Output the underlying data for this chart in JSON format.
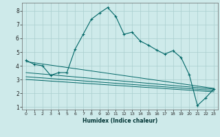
{
  "xlabel": "Humidex (Indice chaleur)",
  "bg_color": "#ceeaea",
  "grid_color": "#aacece",
  "line_color": "#006666",
  "xlim": [
    -0.5,
    23.5
  ],
  "ylim": [
    0.8,
    8.6
  ],
  "x_ticks": [
    0,
    1,
    2,
    3,
    4,
    5,
    6,
    7,
    8,
    9,
    10,
    11,
    12,
    13,
    14,
    15,
    16,
    17,
    18,
    19,
    20,
    21,
    22,
    23
  ],
  "y_ticks": [
    1,
    2,
    3,
    4,
    5,
    6,
    7,
    8
  ],
  "main_x": [
    0,
    1,
    2,
    3,
    4,
    5,
    6,
    7,
    8,
    9,
    10,
    11,
    12,
    13,
    14,
    15,
    16,
    17,
    18,
    19,
    20,
    21,
    22,
    23
  ],
  "main_y": [
    4.4,
    4.1,
    4.0,
    3.3,
    3.5,
    3.5,
    5.2,
    6.3,
    7.4,
    7.85,
    8.25,
    7.6,
    6.3,
    6.45,
    5.8,
    5.5,
    5.15,
    4.85,
    5.1,
    4.6,
    3.35,
    1.1,
    1.65,
    2.3
  ],
  "trend1_x": [
    0,
    23
  ],
  "trend1_y": [
    4.3,
    2.35
  ],
  "trend2_x": [
    0,
    23
  ],
  "trend2_y": [
    3.5,
    2.3
  ],
  "trend3_x": [
    0,
    23
  ],
  "trend3_y": [
    3.2,
    2.2
  ],
  "trend4_x": [
    0,
    23
  ],
  "trend4_y": [
    3.0,
    2.1
  ]
}
